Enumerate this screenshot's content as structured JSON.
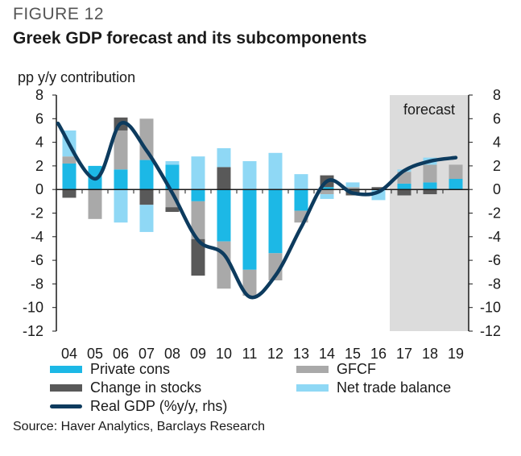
{
  "figure_label": "FIGURE 12",
  "title": "Greek GDP forecast and its subcomponents",
  "source": "Source: Haver Analytics, Barclays Research",
  "colors": {
    "private_cons": "#1cb8e6",
    "gfcf": "#a9a9a9",
    "change_in_stocks": "#595959",
    "net_trade": "#8fd8f5",
    "real_gdp": "#0d3b5e",
    "forecast_shade": "#dcdcdc"
  },
  "chart_data": {
    "type": "bar",
    "stacked": true,
    "title": "Greek GDP forecast and its subcomponents",
    "ylabel": "pp y/y contribution",
    "y2label": "",
    "ylim": [
      -12,
      8
    ],
    "y2lim": [
      -12,
      8
    ],
    "yticks": [
      8,
      6,
      4,
      2,
      0,
      -2,
      -4,
      -6,
      -8,
      -10,
      -12
    ],
    "categories": [
      "04",
      "05",
      "06",
      "07",
      "08",
      "09",
      "10",
      "11",
      "12",
      "13",
      "14",
      "15",
      "16",
      "17",
      "18",
      "19"
    ],
    "forecast_label": "forecast",
    "forecast_start": "17",
    "grid": false,
    "legend_position": "bottom",
    "series": [
      {
        "name": "Private cons",
        "key": "private_cons",
        "kind": "bar",
        "values": [
          2.2,
          2.0,
          1.7,
          2.5,
          2.1,
          -1.0,
          -4.4,
          -6.8,
          -5.4,
          -1.8,
          0.2,
          0.0,
          0.0,
          0.5,
          0.6,
          0.9
        ]
      },
      {
        "name": "GFCF",
        "key": "gfcf",
        "kind": "bar",
        "values": [
          0.6,
          -2.5,
          3.3,
          3.5,
          -1.5,
          -3.2,
          -4.0,
          -2.2,
          -2.3,
          -1.0,
          -0.4,
          0.2,
          0.0,
          1.0,
          1.5,
          1.2
        ]
      },
      {
        "name": "Change in stocks",
        "key": "change_in_stocks",
        "kind": "bar",
        "values": [
          -0.7,
          0.0,
          1.1,
          -1.3,
          -0.4,
          -3.1,
          1.9,
          0.0,
          0.0,
          0.0,
          1.0,
          -0.5,
          0.2,
          -0.5,
          -0.4,
          0.0
        ]
      },
      {
        "name": "Net trade balance",
        "key": "net_trade",
        "kind": "bar",
        "values": [
          2.2,
          0.0,
          -2.8,
          -2.3,
          0.3,
          2.8,
          1.6,
          2.4,
          3.1,
          1.3,
          -0.4,
          0.4,
          -0.9,
          0.2,
          0.6,
          0.0
        ]
      },
      {
        "name": "Real GDP (%y/y, rhs)",
        "key": "real_gdp",
        "kind": "line",
        "values": [
          5.6,
          0.9,
          5.6,
          3.3,
          -0.3,
          -4.3,
          -5.5,
          -9.1,
          -7.3,
          -3.2,
          0.7,
          -0.3,
          -0.2,
          1.6,
          2.4,
          2.7
        ]
      }
    ]
  },
  "legend": {
    "private_cons": "Private cons",
    "gfcf": "GFCF",
    "change_in_stocks": "Change in stocks",
    "net_trade": "Net trade balance",
    "real_gdp": "Real GDP (%y/y, rhs)"
  }
}
